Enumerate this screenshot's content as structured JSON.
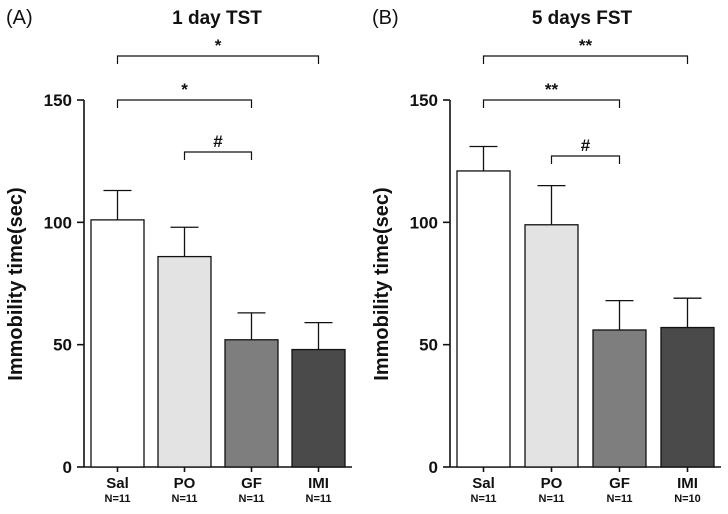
{
  "chart_data": [
    {
      "type": "bar",
      "panel_label": "(A)",
      "title": "1 day TST",
      "ylabel": "Immobility time(sec)",
      "xlabel": "",
      "ylim": [
        0,
        150
      ],
      "yticks": [
        "0",
        "50",
        "100",
        "150"
      ],
      "categories": [
        "Sal",
        "PO",
        "GF",
        "IMI"
      ],
      "n_labels": [
        "N=11",
        "N=11",
        "N=11",
        "N=11"
      ],
      "values": [
        101,
        86,
        52,
        48
      ],
      "errors": [
        12,
        12,
        11,
        11
      ],
      "colors": [
        "#ffffff",
        "#e3e3e3",
        "#7e7e7e",
        "#4a4a4a"
      ],
      "significance": [
        {
          "from": 0,
          "to": 3,
          "label": "*"
        },
        {
          "from": 0,
          "to": 2,
          "label": "*"
        },
        {
          "from": 1,
          "to": 2,
          "label": "#"
        }
      ]
    },
    {
      "type": "bar",
      "panel_label": "(B)",
      "title": "5 days FST",
      "ylabel": "Immobility time(sec)",
      "xlabel": "",
      "ylim": [
        0,
        150
      ],
      "yticks": [
        "0",
        "50",
        "100",
        "150"
      ],
      "categories": [
        "Sal",
        "PO",
        "GF",
        "IMI"
      ],
      "n_labels": [
        "N=11",
        "N=11",
        "N=11",
        "N=10"
      ],
      "values": [
        121,
        99,
        56,
        57
      ],
      "errors": [
        10,
        16,
        12,
        12
      ],
      "colors": [
        "#ffffff",
        "#e3e3e3",
        "#7e7e7e",
        "#4a4a4a"
      ],
      "significance": [
        {
          "from": 0,
          "to": 3,
          "label": "**"
        },
        {
          "from": 0,
          "to": 2,
          "label": "**"
        },
        {
          "from": 1,
          "to": 2,
          "label": "#"
        }
      ]
    }
  ]
}
